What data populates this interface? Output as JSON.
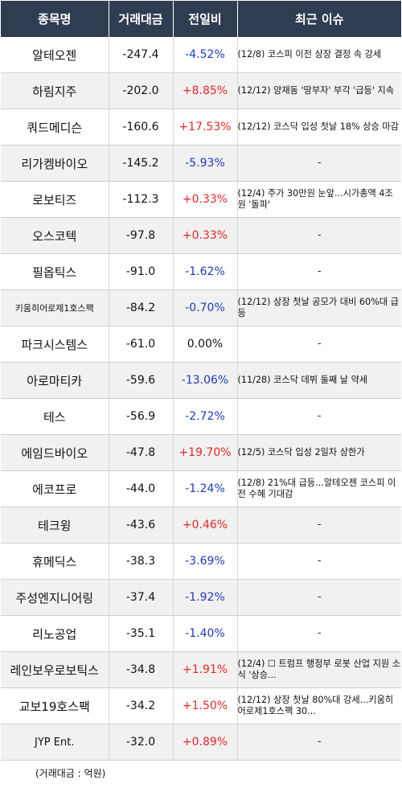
{
  "header": {
    "col_name": "종목명",
    "col_volume": "거래대금",
    "col_change": "전일비",
    "col_issue": "최근 이슈"
  },
  "colors": {
    "header_bg": "#2f3d52",
    "up": "#e8262a",
    "down": "#1f3bb8"
  },
  "rows": [
    {
      "name": "알테오젠",
      "volume": "-247.4",
      "change": "-4.52%",
      "dir": "down",
      "issue": "(12/8) 코스피 이전 상장 결정 속 강세"
    },
    {
      "name": "하림지주",
      "volume": "-202.0",
      "change": "+8.85%",
      "dir": "up",
      "issue": "(12/12) 양재동 '땅부자' 부각 '급등' 지속"
    },
    {
      "name": "쿼드메디슨",
      "volume": "-160.6",
      "change": "+17.53%",
      "dir": "up",
      "issue": "(12/12) 코스닥 입성 첫날 18% 상승 마감"
    },
    {
      "name": "리가켐바이오",
      "volume": "-145.2",
      "change": "-5.93%",
      "dir": "down",
      "issue": "-"
    },
    {
      "name": "로보티즈",
      "volume": "-112.3",
      "change": "+0.33%",
      "dir": "up",
      "issue": "(12/4) 주가 30만원 눈앞...시가총액 4조원 '돌파'"
    },
    {
      "name": "오스코텍",
      "volume": "-97.8",
      "change": "+0.33%",
      "dir": "up",
      "issue": "-"
    },
    {
      "name": "필옵틱스",
      "volume": "-91.0",
      "change": "-1.62%",
      "dir": "down",
      "issue": "-"
    },
    {
      "name": "키움히어로제1호스팩",
      "volume": "-84.2",
      "change": "-0.70%",
      "dir": "down",
      "issue": "(12/12) 상장 첫날 공모가 대비 60%대 급등"
    },
    {
      "name": "파크시스템스",
      "volume": "-61.0",
      "change": "0.00%",
      "dir": "flat",
      "issue": "-"
    },
    {
      "name": "아로마티카",
      "volume": "-59.6",
      "change": "-13.06%",
      "dir": "down",
      "issue": "(11/28) 코스닥 데뷔 둘째 날 약세"
    },
    {
      "name": "테스",
      "volume": "-56.9",
      "change": "-2.72%",
      "dir": "down",
      "issue": "-"
    },
    {
      "name": "에임드바이오",
      "volume": "-47.8",
      "change": "+19.70%",
      "dir": "up",
      "issue": "(12/5) 코스닥 입성 2일차 상한가"
    },
    {
      "name": "에코프로",
      "volume": "-44.0",
      "change": "-1.24%",
      "dir": "down",
      "issue": "(12/8) 21%대 급등...알테오젠 코스피 이전 수혜 기대감"
    },
    {
      "name": "테크윙",
      "volume": "-43.6",
      "change": "+0.46%",
      "dir": "up",
      "issue": "-"
    },
    {
      "name": "휴메딕스",
      "volume": "-38.3",
      "change": "-3.69%",
      "dir": "down",
      "issue": "-"
    },
    {
      "name": "주성엔지니어링",
      "volume": "-37.4",
      "change": "-1.92%",
      "dir": "down",
      "issue": "-"
    },
    {
      "name": "리노공업",
      "volume": "-35.1",
      "change": "-1.40%",
      "dir": "down",
      "issue": "-"
    },
    {
      "name": "레인보우로보틱스",
      "volume": "-34.8",
      "change": "+1.91%",
      "dir": "up",
      "issue": "(12/4) ☐ 트럼프 행정부 로봇 산업 지원 소식 '상승..."
    },
    {
      "name": "교보19호스팩",
      "volume": "-34.2",
      "change": "+1.50%",
      "dir": "up",
      "issue": "(12/12) 상장 첫날 80%대 강세...키움히어로제1호스팩 30..."
    },
    {
      "name": "JYP Ent.",
      "volume": "-32.0",
      "change": "+0.89%",
      "dir": "up",
      "issue": "-"
    }
  ],
  "footer": {
    "note": "(거래대금 : 억원)"
  }
}
